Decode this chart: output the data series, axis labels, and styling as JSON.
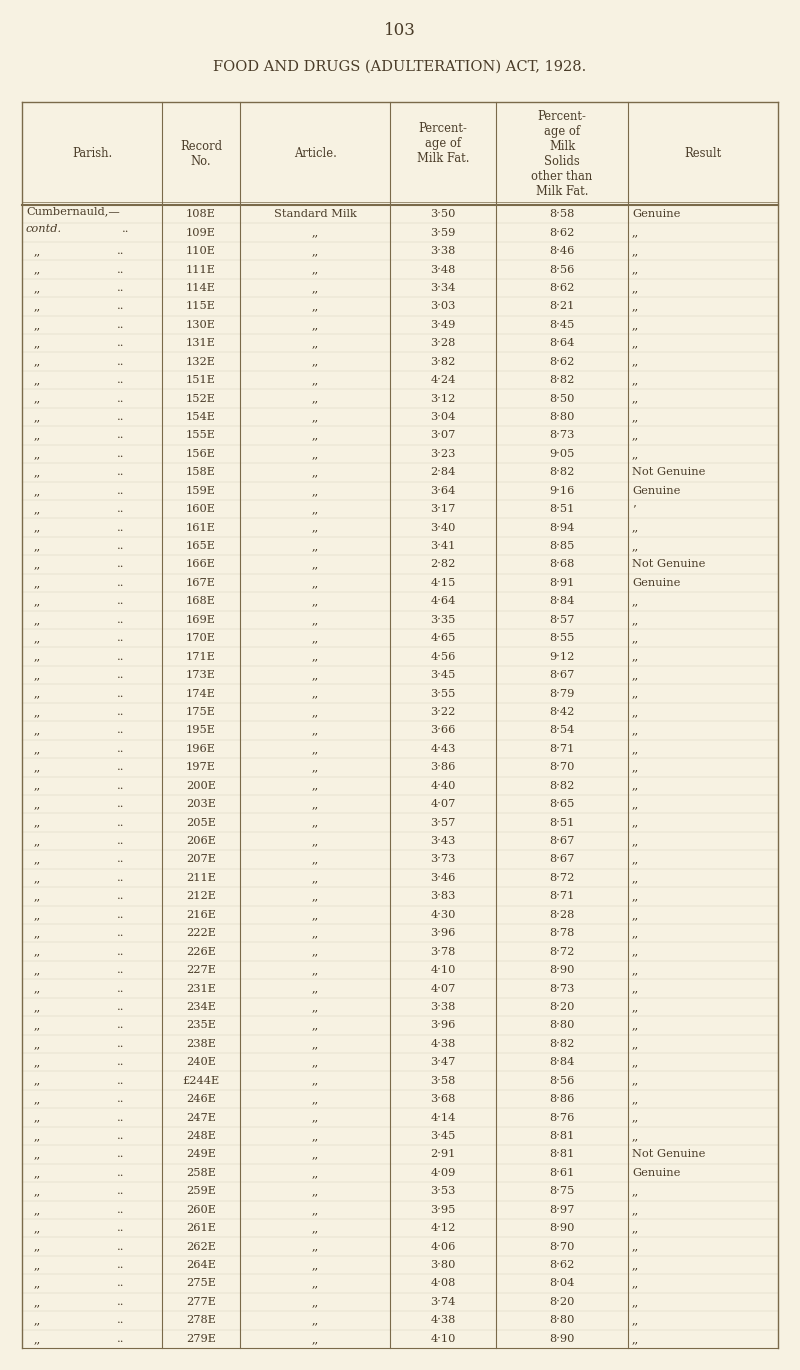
{
  "page_number": "103",
  "title": "FOOD AND DRUGS (ADULTERATION) ACT, 1928.",
  "rows": [
    [
      "Cumbernauld,—",
      "108E",
      "Standard Milk",
      "3·50",
      "8·58",
      "Genuine"
    ],
    [
      "contd.",
      "109E",
      ",,",
      "3·59",
      "8·62",
      ",,"
    ],
    [
      ",,",
      "110E",
      ",,",
      "3·38",
      "8·46",
      ",,"
    ],
    [
      ",,",
      "111E",
      ",,",
      "3·48",
      "8·56",
      ",,"
    ],
    [
      ",,",
      "114E",
      ",,",
      "3·34",
      "8·62",
      ",,"
    ],
    [
      ",,",
      "115E",
      ",,",
      "3·03",
      "8·21",
      ",,"
    ],
    [
      ",,",
      "130E",
      ",,",
      "3·49",
      "8·45",
      ",,"
    ],
    [
      ",,",
      "131E",
      ",,",
      "3·28",
      "8·64",
      ",,"
    ],
    [
      ",,",
      "132E",
      ",,",
      "3·82",
      "8·62",
      ",,"
    ],
    [
      ",,",
      "151E",
      ",,",
      "4·24",
      "8·82",
      ",,"
    ],
    [
      ",,",
      "152E",
      ",,",
      "3·12",
      "8·50",
      ",,"
    ],
    [
      ",,",
      "154E",
      ",,",
      "3·04",
      "8·80",
      ",,"
    ],
    [
      ",,",
      "155E",
      ",,",
      "3·07",
      "8·73",
      ",,"
    ],
    [
      ",,",
      "156E",
      ",,",
      "3·23",
      "9·05",
      ",,"
    ],
    [
      ",,",
      "158E",
      ",,",
      "2·84",
      "8·82",
      "Not Genuine"
    ],
    [
      ",,",
      "159E",
      ",,",
      "3·64",
      "9·16",
      "Genuine"
    ],
    [
      ",,",
      "160E",
      ",,",
      "3·17",
      "8·51",
      "’"
    ],
    [
      ",,",
      "161E",
      ",,",
      "3·40",
      "8·94",
      ",,"
    ],
    [
      ",,",
      "165E",
      ",,",
      "3·41",
      "8·85",
      ",,"
    ],
    [
      ",,",
      "166E",
      ",,",
      "2·82",
      "8·68",
      "Not Genuine"
    ],
    [
      ",,",
      "167E",
      ",,",
      "4·15",
      "8·91",
      "Genuine"
    ],
    [
      ",,",
      "168E",
      ",,",
      "4·64",
      "8·84",
      ",,"
    ],
    [
      ",,",
      "169E",
      ",,",
      "3·35",
      "8·57",
      ",,"
    ],
    [
      ",,",
      "170E",
      ",,",
      "4·65",
      "8·55",
      ",,"
    ],
    [
      ",,",
      "171E",
      ",,",
      "4·56",
      "9·12",
      ",,"
    ],
    [
      ",,",
      "173E",
      ",,",
      "3·45",
      "8·67",
      ",,"
    ],
    [
      ",,",
      "174E",
      ",,",
      "3·55",
      "8·79",
      ",,"
    ],
    [
      ",,",
      "175E",
      ",,",
      "3·22",
      "8·42",
      ",,"
    ],
    [
      ",,",
      "195E",
      ",,",
      "3·66",
      "8·54",
      ",,"
    ],
    [
      ",,",
      "196E",
      ",,",
      "4·43",
      "8·71",
      ",,"
    ],
    [
      ",,",
      "197E",
      ",,",
      "3·86",
      "8·70",
      ",,"
    ],
    [
      ",,",
      "200E",
      ",,",
      "4·40",
      "8·82",
      ",,"
    ],
    [
      ",,",
      "203E",
      ",,",
      "4·07",
      "8·65",
      ",,"
    ],
    [
      ",,",
      "205E",
      ",,",
      "3·57",
      "8·51",
      ",,"
    ],
    [
      ",,",
      "206E",
      ",,",
      "3·43",
      "8·67",
      ",,"
    ],
    [
      ",,",
      "207E",
      ",,",
      "3·73",
      "8·67",
      ",,"
    ],
    [
      ",,",
      "211E",
      ",,",
      "3·46",
      "8·72",
      ",,"
    ],
    [
      ",,",
      "212E",
      ",,",
      "3·83",
      "8·71",
      ",,"
    ],
    [
      ",,",
      "216E",
      ",,",
      "4·30",
      "8·28",
      ",,"
    ],
    [
      ",,",
      "222E",
      ",,",
      "3·96",
      "8·78",
      ",,"
    ],
    [
      ",,",
      "226E",
      ",,",
      "3·78",
      "8·72",
      ",,"
    ],
    [
      ",,",
      "227E",
      ",,",
      "4·10",
      "8·90",
      ",,"
    ],
    [
      ",,",
      "231E",
      ",,",
      "4·07",
      "8·73",
      ",,"
    ],
    [
      ",,",
      "234E",
      ",,",
      "3·38",
      "8·20",
      ",,"
    ],
    [
      ",,",
      "235E",
      ",,",
      "3·96",
      "8·80",
      ",,"
    ],
    [
      ",,",
      "238E",
      ",,",
      "4·38",
      "8·82",
      ",,"
    ],
    [
      ",,",
      "240E",
      ",,",
      "3·47",
      "8·84",
      ",,"
    ],
    [
      ",,",
      "£244E",
      ",,",
      "3·58",
      "8·56",
      ",,"
    ],
    [
      ",,",
      "246E",
      ",,",
      "3·68",
      "8·86",
      ",,"
    ],
    [
      ",,",
      "247E",
      ",,",
      "4·14",
      "8·76",
      ",,"
    ],
    [
      ",,",
      "248E",
      ",,",
      "3·45",
      "8·81",
      ",,"
    ],
    [
      ",,",
      "249E",
      ",,",
      "2·91",
      "8·81",
      "Not Genuine"
    ],
    [
      ",,",
      "258E",
      ",,",
      "4·09",
      "8·61",
      "Genuine"
    ],
    [
      ",,",
      "259E",
      ",,",
      "3·53",
      "8·75",
      ",,"
    ],
    [
      ",,",
      "260E",
      ",,",
      "3·95",
      "8·97",
      ",,"
    ],
    [
      ",,",
      "261E",
      ",,",
      "4·12",
      "8·90",
      ",,"
    ],
    [
      ",,",
      "262E",
      ",,",
      "4·06",
      "8·70",
      ",,"
    ],
    [
      ",,",
      "264E",
      ",,",
      "3·80",
      "8·62",
      ",,"
    ],
    [
      ",,",
      "275E",
      ",,",
      "4·08",
      "8·04",
      ",,"
    ],
    [
      ",,",
      "277E",
      ",,",
      "3·74",
      "8·20",
      ",,"
    ],
    [
      ",,",
      "278E",
      ",,",
      "4·38",
      "8·80",
      ",,"
    ],
    [
      ",,",
      "279E",
      ",,",
      "4·10",
      "8·90",
      ",,"
    ]
  ],
  "parish_dots": [
    [
      false,
      false
    ],
    [
      true,
      false
    ],
    [
      true,
      true
    ],
    [
      true,
      true
    ],
    [
      true,
      true
    ],
    [
      true,
      true
    ],
    [
      true,
      true
    ],
    [
      true,
      true
    ],
    [
      true,
      true
    ],
    [
      true,
      true
    ],
    [
      true,
      true
    ],
    [
      true,
      true
    ],
    [
      true,
      true
    ],
    [
      true,
      true
    ],
    [
      true,
      true
    ],
    [
      true,
      true
    ],
    [
      true,
      true
    ],
    [
      true,
      true
    ],
    [
      true,
      true
    ],
    [
      true,
      true
    ],
    [
      true,
      true
    ],
    [
      true,
      true
    ],
    [
      true,
      true
    ],
    [
      true,
      true
    ],
    [
      true,
      true
    ],
    [
      true,
      true
    ],
    [
      true,
      true
    ],
    [
      true,
      true
    ],
    [
      true,
      true
    ],
    [
      true,
      true
    ],
    [
      true,
      true
    ],
    [
      true,
      true
    ],
    [
      true,
      true
    ],
    [
      true,
      true
    ],
    [
      true,
      true
    ],
    [
      true,
      true
    ],
    [
      true,
      true
    ],
    [
      true,
      true
    ],
    [
      true,
      true
    ],
    [
      true,
      true
    ],
    [
      true,
      true
    ],
    [
      true,
      true
    ],
    [
      true,
      true
    ],
    [
      true,
      true
    ],
    [
      true,
      true
    ],
    [
      true,
      true
    ],
    [
      true,
      true
    ],
    [
      true,
      true
    ],
    [
      true,
      true
    ],
    [
      true,
      true
    ],
    [
      true,
      true
    ],
    [
      true,
      true
    ],
    [
      true,
      true
    ],
    [
      true,
      true
    ],
    [
      true,
      true
    ],
    [
      true,
      true
    ],
    [
      true,
      true
    ],
    [
      true,
      true
    ],
    [
      true,
      true
    ],
    [
      true,
      true
    ],
    [
      true,
      true
    ]
  ],
  "bg_color": "#f7f2e2",
  "text_color": "#4a3c28",
  "line_color": "#7a6a4a"
}
